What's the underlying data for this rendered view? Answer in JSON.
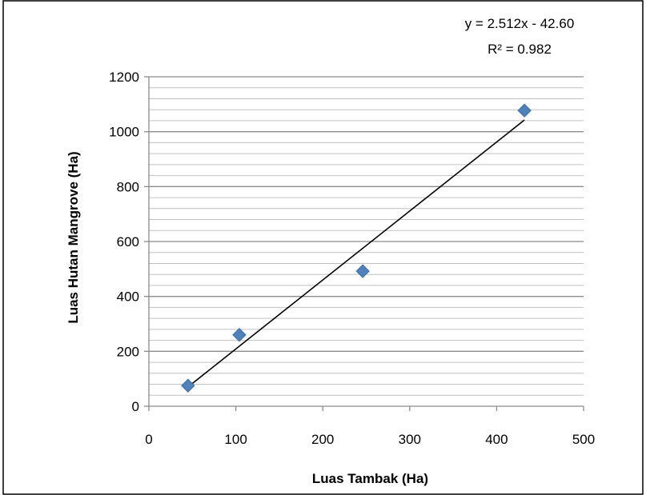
{
  "chart_data": {
    "type": "scatter",
    "title": "",
    "xlabel": "Luas Tambak (Ha)",
    "ylabel": "Luas Hutan Mangrove (Ha)",
    "xlim": [
      0,
      500
    ],
    "ylim": [
      0,
      1200
    ],
    "x_ticks": [
      0,
      100,
      200,
      300,
      400,
      500
    ],
    "y_ticks": [
      0,
      200,
      400,
      600,
      800,
      1000,
      1200
    ],
    "grid": true,
    "legend": "none",
    "marker": "diamond",
    "series": [
      {
        "x": [
          45,
          104,
          246,
          432
        ],
        "y": [
          75,
          260,
          492,
          1077
        ],
        "color": "#4F81BD"
      }
    ],
    "trendline": {
      "type": "linear",
      "slope": 2.512,
      "intercept": -42.6,
      "x_range": [
        45,
        432
      ],
      "equation": "y = 2.512x - 42.60",
      "r_squared": "R² = 0.982",
      "color": "#000000"
    }
  }
}
